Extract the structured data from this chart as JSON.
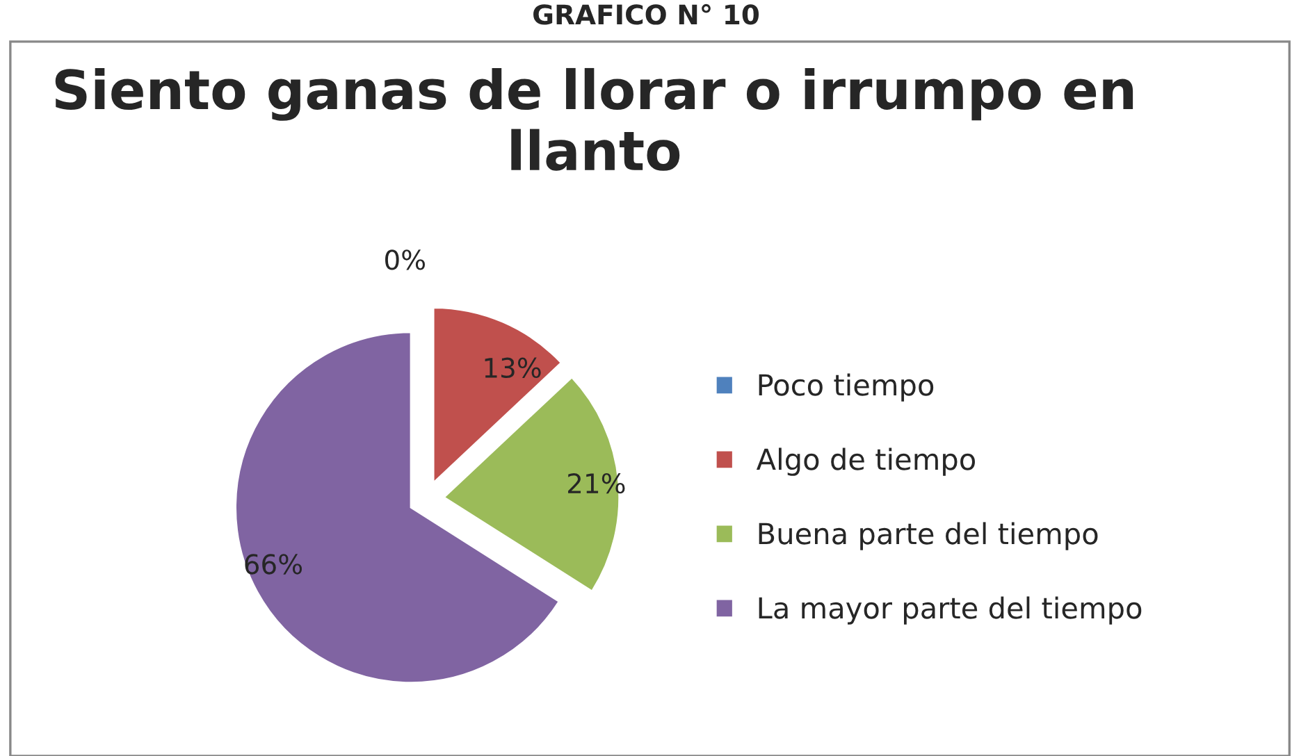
{
  "chart_data": {
    "type": "pie",
    "title": "Siento ganas de llorar o irrumpo en llanto",
    "annotations": [
      "GRAFICO N° 10"
    ],
    "categories": [
      "Poco tiempo",
      "Algo de tiempo",
      "Buena parte del tiempo",
      "La mayor parte del tiempo"
    ],
    "values": [
      0,
      13,
      21,
      66
    ],
    "colors": [
      "#4f81bd",
      "#c0504d",
      "#9bbb59",
      "#8064a2"
    ],
    "value_labels": [
      "0%",
      "13%",
      "21%",
      "66%"
    ],
    "legend": "right"
  }
}
